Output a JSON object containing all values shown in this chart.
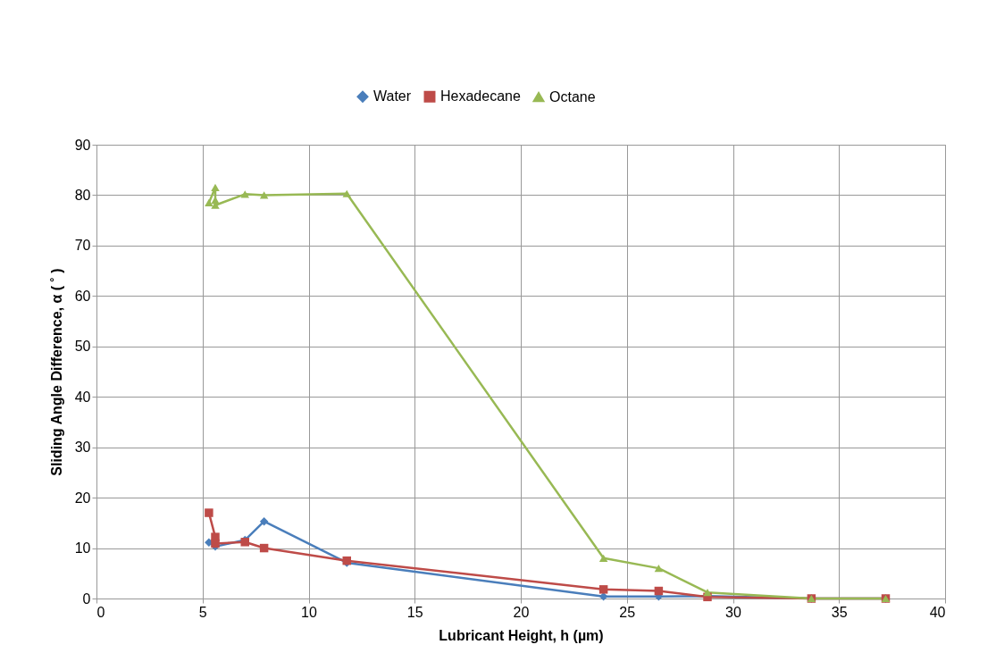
{
  "chart_data": {
    "type": "line",
    "xlabel": "Lubricant Height, h (µm)",
    "ylabel": "Sliding Angle Difference, α ( ˚ )",
    "xlim": [
      0,
      40
    ],
    "xticks": [
      0,
      5,
      10,
      15,
      20,
      25,
      30,
      35,
      40
    ],
    "ylim": [
      0,
      90
    ],
    "yticks": [
      0,
      10,
      20,
      30,
      40,
      50,
      60,
      70,
      80,
      90
    ],
    "grid": true,
    "legend": "top",
    "line_style": "solid",
    "series": [
      {
        "name": "Water",
        "color": "#4a7ebb",
        "marker": "diamond",
        "x": [
          5.3,
          5.6,
          7,
          7.9,
          11.8,
          23.9,
          26.5,
          28.8,
          33.7,
          37.2
        ],
        "values": [
          11.1,
          10.3,
          11.6,
          15.3,
          7.1,
          0.4,
          0.4,
          0.5,
          0,
          0
        ]
      },
      {
        "name": "Hexadecane",
        "color": "#be4b48",
        "marker": "square",
        "x": [
          5.3,
          5.6,
          5.6,
          7,
          7.9,
          11.8,
          23.9,
          26.5,
          28.8,
          33.7,
          37.2
        ],
        "values": [
          17,
          12.2,
          10.9,
          11.2,
          10,
          7.5,
          1.8,
          1.5,
          0.3,
          0,
          0
        ]
      },
      {
        "name": "Octane",
        "color": "#98b954",
        "marker": "triangle",
        "x": [
          5.3,
          5.6,
          5.6,
          5.6,
          7,
          7.9,
          11.8,
          23.9,
          26.5,
          28.8,
          33.7,
          37.2
        ],
        "values": [
          78.5,
          81.5,
          79,
          78,
          80.2,
          80,
          80.3,
          8,
          6,
          1.2,
          0,
          0
        ]
      }
    ]
  }
}
